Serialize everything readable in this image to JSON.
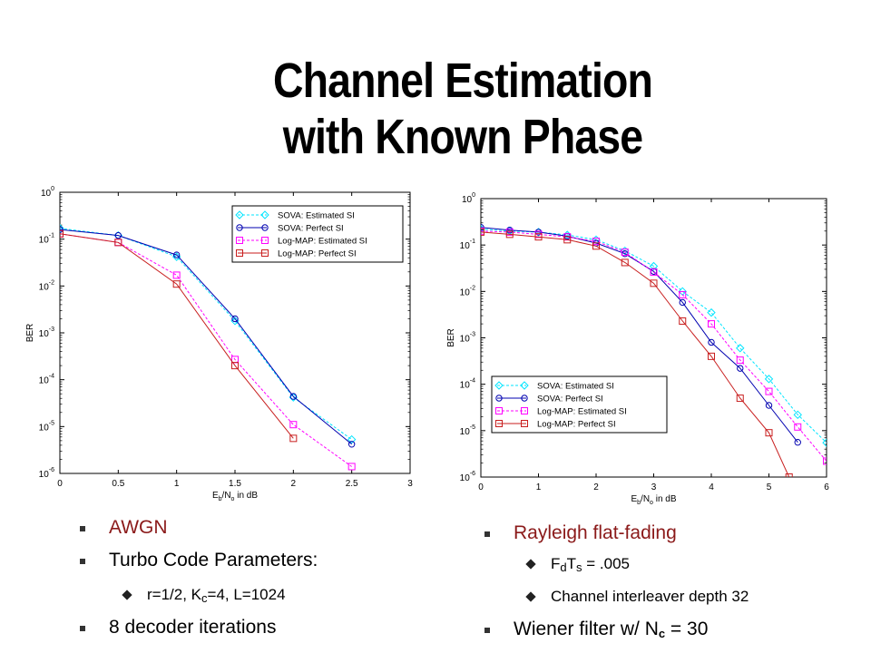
{
  "title": {
    "line1": "Channel Estimation",
    "line2": "with Known Phase"
  },
  "bullets_left": {
    "b1": "AWGN",
    "b2": "Turbo Code Parameters:",
    "b3_pre": "r=1/2, K",
    "b3_sub": "c",
    "b3_post": "=4, L=1024",
    "b4": "8 decoder iterations"
  },
  "bullets_right": {
    "b1": "Rayleigh flat-fading",
    "b2_f": "F",
    "b2_fsub": "d",
    "b2_t": "T",
    "b2_tsub": "s",
    "b2_post": " = .005",
    "b3": "Channel interleaver depth 32",
    "b4_pre": "Wiener filter w/ N",
    "b4_sub": "c",
    "b4_post": " = 30"
  },
  "colors": {
    "cyan": "#00e5ff",
    "blue": "#0000b0",
    "magenta": "#ff00ff",
    "red": "#c81e1e",
    "bullet_red": "#8b1a1a"
  },
  "chart_data": [
    {
      "type": "line",
      "xlabel": "Eb/No in dB",
      "ylabel": "BER",
      "xlim": [
        0,
        3
      ],
      "ylim": [
        1e-06,
        1
      ],
      "yscale": "log",
      "xticks": [
        "0",
        "0.5",
        "1",
        "1.5",
        "2",
        "2.5",
        "3"
      ],
      "yticks": [
        0,
        -1,
        -2,
        -3,
        -4,
        -5,
        -6
      ],
      "legend_position": "top-right",
      "series": [
        {
          "name": "SOVA: Estimated SI",
          "color": "cyan",
          "style": "dashed",
          "marker": "diamond",
          "x": [
            0,
            0.5,
            1,
            1.5,
            2,
            2.5
          ],
          "y": [
            0.17,
            0.12,
            0.042,
            0.0018,
            4.2e-05,
            5.3e-06
          ]
        },
        {
          "name": "SOVA: Perfect SI",
          "color": "blue",
          "style": "solid",
          "marker": "circle",
          "x": [
            0,
            0.5,
            1,
            1.5,
            2,
            2.5
          ],
          "y": [
            0.16,
            0.12,
            0.046,
            0.002,
            4.4e-05,
            4.2e-06
          ]
        },
        {
          "name": "Log-MAP: Estimated SI",
          "color": "magenta",
          "style": "dashed",
          "marker": "square",
          "x": [
            0,
            0.5,
            1,
            1.5,
            2,
            2.5
          ],
          "y": [
            0.13,
            0.085,
            0.017,
            0.00027,
            1.1e-05,
            1.4e-06
          ]
        },
        {
          "name": "Log-MAP: Perfect SI",
          "color": "red",
          "style": "solid",
          "marker": "square",
          "x": [
            0,
            0.5,
            1,
            1.5,
            2
          ],
          "y": [
            0.13,
            0.085,
            0.011,
            0.0002,
            5.6e-06
          ]
        }
      ]
    },
    {
      "type": "line",
      "xlabel": "Eb/No in dB",
      "ylabel": "BER",
      "xlim": [
        0,
        6
      ],
      "ylim": [
        1e-06,
        1
      ],
      "yscale": "log",
      "xticks": [
        "0",
        "1",
        "2",
        "3",
        "4",
        "5",
        "6"
      ],
      "yticks": [
        0,
        -1,
        -2,
        -3,
        -4,
        -5,
        -6
      ],
      "legend_position": "bottom-left",
      "series": [
        {
          "name": "SOVA: Estimated SI",
          "color": "cyan",
          "style": "dashed",
          "marker": "diamond",
          "x": [
            0,
            0.5,
            1,
            1.5,
            2,
            2.5,
            3,
            3.5,
            4,
            4.5,
            5,
            5.5,
            6
          ],
          "y": [
            0.22,
            0.2,
            0.19,
            0.165,
            0.13,
            0.075,
            0.035,
            0.01,
            0.0035,
            0.0006,
            0.00013,
            2.2e-05,
            5.5e-06
          ]
        },
        {
          "name": "SOVA: Perfect SI",
          "color": "blue",
          "style": "solid",
          "marker": "circle",
          "x": [
            0,
            0.5,
            1,
            1.5,
            2,
            2.5,
            3,
            3.5,
            4,
            4.5,
            5,
            5.5
          ],
          "y": [
            0.24,
            0.21,
            0.19,
            0.155,
            0.11,
            0.065,
            0.027,
            0.0058,
            0.0008,
            0.00022,
            3.5e-05,
            5.6e-06
          ]
        },
        {
          "name": "Log-MAP: Estimated SI",
          "color": "magenta",
          "style": "dashed",
          "marker": "square",
          "x": [
            0,
            0.5,
            1,
            1.5,
            2,
            2.5,
            3,
            3.5,
            4,
            4.5,
            5,
            5.5,
            6
          ],
          "y": [
            0.2,
            0.19,
            0.17,
            0.15,
            0.12,
            0.07,
            0.026,
            0.0085,
            0.002,
            0.00033,
            7e-05,
            1.2e-05,
            2.2e-06
          ]
        },
        {
          "name": "Log-MAP: Perfect SI",
          "color": "red",
          "style": "solid",
          "marker": "square",
          "x": [
            0,
            0.5,
            1,
            1.5,
            2,
            2.5,
            3,
            3.5,
            4,
            4.5,
            5,
            5.35
          ],
          "y": [
            0.19,
            0.17,
            0.15,
            0.13,
            0.095,
            0.042,
            0.015,
            0.0023,
            0.0004,
            5e-05,
            9e-06,
            1e-06
          ]
        }
      ]
    }
  ]
}
